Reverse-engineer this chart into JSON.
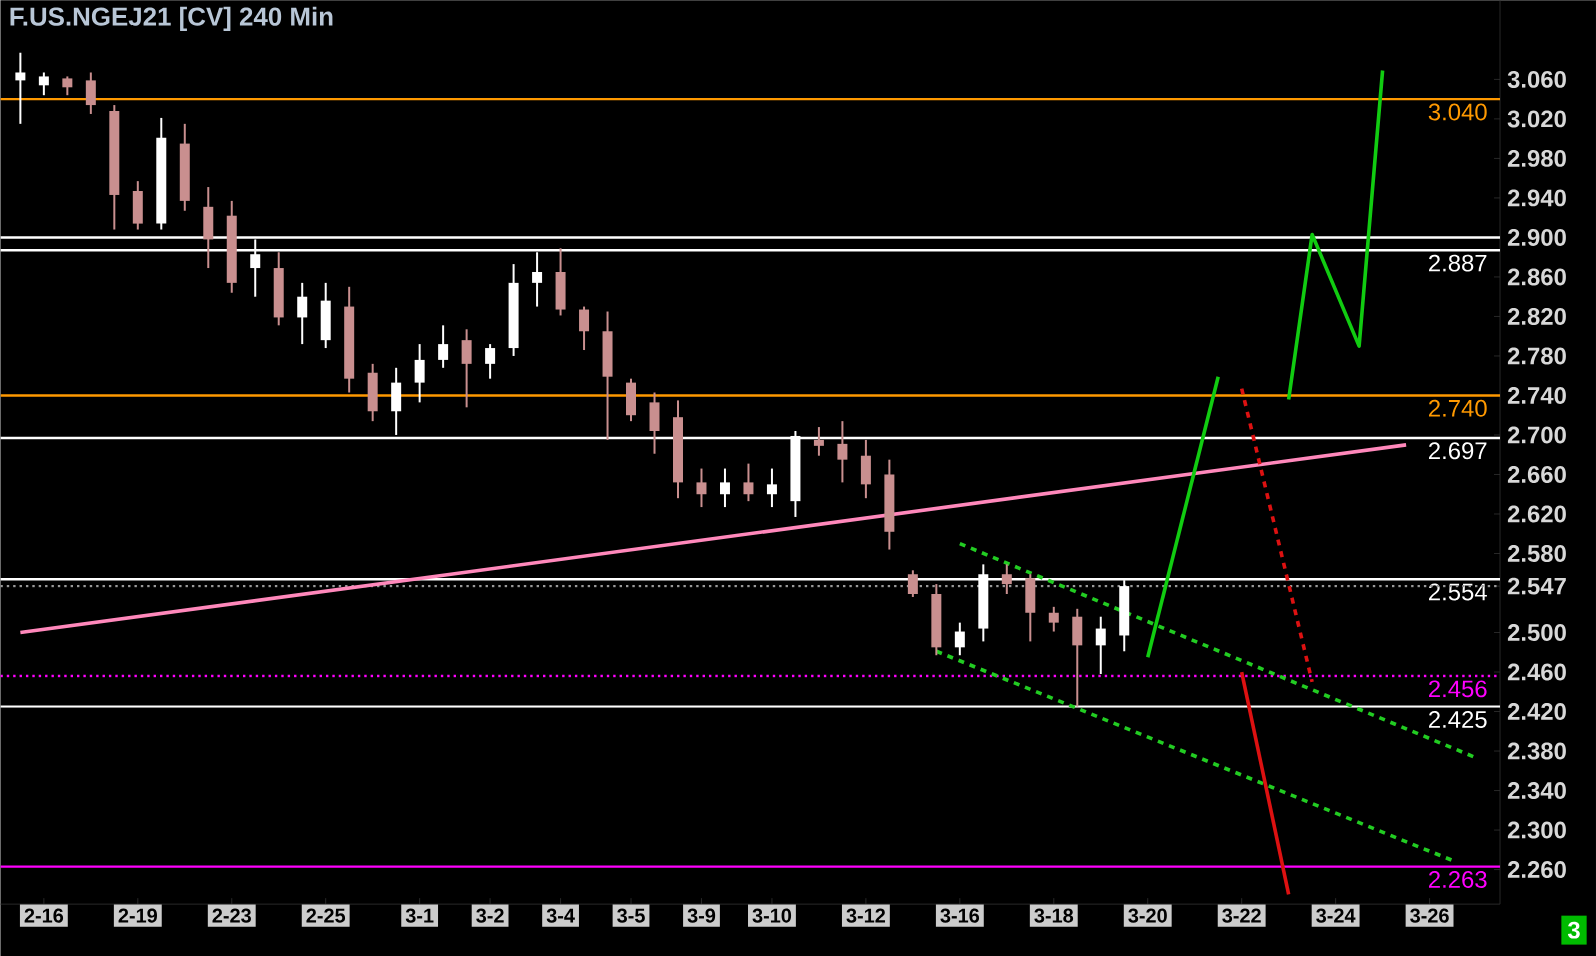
{
  "chart_data": {
    "type": "candlestick",
    "title": "F.US.NGEJ21 [CV] 240 Min",
    "categories": [
      null,
      "2-16",
      null,
      null,
      null,
      "2-19",
      null,
      null,
      null,
      "2-23",
      null,
      null,
      null,
      "2-25",
      null,
      null,
      null,
      "3-1",
      null,
      null,
      "3-2",
      null,
      null,
      "3-4",
      null,
      null,
      "3-5",
      null,
      null,
      "3-9",
      null,
      null,
      "3-10",
      null,
      null,
      null,
      "3-12",
      null,
      null,
      null,
      "3-16",
      null,
      null,
      null,
      "3-18",
      null,
      null,
      null,
      "3-20",
      null,
      null,
      null,
      "3-22",
      null,
      null,
      null,
      "3-24",
      null,
      null,
      null,
      "3-26",
      null,
      null
    ],
    "ylim": [
      2.225,
      3.14
    ],
    "yticks": [
      {
        "value": 3.06,
        "label": "3.060"
      },
      {
        "value": 3.02,
        "label": "3.020"
      },
      {
        "value": 2.98,
        "label": "2.980"
      },
      {
        "value": 2.94,
        "label": "2.940"
      },
      {
        "value": 2.9,
        "label": "2.900"
      },
      {
        "value": 2.86,
        "label": "2.860"
      },
      {
        "value": 2.82,
        "label": "2.820"
      },
      {
        "value": 2.78,
        "label": "2.780"
      },
      {
        "value": 2.74,
        "label": "2.740"
      },
      {
        "value": 2.7,
        "label": "2.700"
      },
      {
        "value": 2.66,
        "label": "2.660"
      },
      {
        "value": 2.62,
        "label": "2.620"
      },
      {
        "value": 2.58,
        "label": "2.580"
      },
      {
        "value": 2.547,
        "label": "2.547"
      },
      {
        "value": 2.5,
        "label": "2.500"
      },
      {
        "value": 2.46,
        "label": "2.460"
      },
      {
        "value": 2.42,
        "label": "2.420"
      },
      {
        "value": 2.38,
        "label": "2.380"
      },
      {
        "value": 2.34,
        "label": "2.340"
      },
      {
        "value": 2.3,
        "label": "2.300"
      },
      {
        "value": 2.26,
        "label": "2.260"
      }
    ],
    "series": [
      {
        "ohlc": [
          [
            3.059,
            3.087,
            3.015,
            3.067
          ],
          [
            3.054,
            3.067,
            3.044,
            3.063
          ],
          [
            3.061,
            3.063,
            3.044,
            3.052
          ],
          [
            3.059,
            3.067,
            3.025,
            3.034
          ],
          [
            3.028,
            3.034,
            2.908,
            2.943
          ],
          [
            2.947,
            2.957,
            2.908,
            2.914
          ],
          [
            2.914,
            3.021,
            2.908,
            3.001
          ],
          [
            2.995,
            3.015,
            2.927,
            2.937
          ],
          [
            2.931,
            2.951,
            2.869,
            2.898
          ],
          [
            2.922,
            2.937,
            2.844,
            2.854
          ],
          [
            2.869,
            2.898,
            2.84,
            2.883
          ],
          [
            2.869,
            2.885,
            2.811,
            2.819
          ],
          [
            2.819,
            2.854,
            2.792,
            2.84
          ],
          [
            2.796,
            2.854,
            2.788,
            2.836
          ],
          [
            2.83,
            2.85,
            2.743,
            2.757
          ],
          [
            2.763,
            2.772,
            2.714,
            2.724
          ],
          [
            2.724,
            2.768,
            2.7,
            2.753
          ],
          [
            2.753,
            2.792,
            2.733,
            2.776
          ],
          [
            2.776,
            2.811,
            2.768,
            2.792
          ],
          [
            2.796,
            2.807,
            2.728,
            2.772
          ],
          [
            2.772,
            2.792,
            2.757,
            2.788
          ],
          [
            2.788,
            2.873,
            2.78,
            2.854
          ],
          [
            2.854,
            2.885,
            2.83,
            2.865
          ],
          [
            2.865,
            2.889,
            2.821,
            2.827
          ],
          [
            2.827,
            2.83,
            2.786,
            2.805
          ],
          [
            2.805,
            2.825,
            2.695,
            2.759
          ],
          [
            2.753,
            2.757,
            2.714,
            2.72
          ],
          [
            2.733,
            2.743,
            2.681,
            2.704
          ],
          [
            2.718,
            2.735,
            2.636,
            2.652
          ],
          [
            2.652,
            2.666,
            2.627,
            2.64
          ],
          [
            2.64,
            2.666,
            2.627,
            2.652
          ],
          [
            2.652,
            2.671,
            2.633,
            2.64
          ],
          [
            2.64,
            2.666,
            2.627,
            2.65
          ],
          [
            2.633,
            2.704,
            2.617,
            2.699
          ],
          [
            2.695,
            2.708,
            2.679,
            2.689
          ],
          [
            2.691,
            2.714,
            2.652,
            2.675
          ],
          [
            2.679,
            2.695,
            2.636,
            2.65
          ],
          [
            2.66,
            2.675,
            2.584,
            2.602
          ],
          [
            2.559,
            2.563,
            2.536,
            2.539
          ],
          [
            2.539,
            2.549,
            2.477,
            2.485
          ],
          [
            2.485,
            2.51,
            2.477,
            2.501
          ],
          [
            2.504,
            2.569,
            2.491,
            2.559
          ],
          [
            2.559,
            2.569,
            2.539,
            2.549
          ],
          [
            2.555,
            2.559,
            2.491,
            2.52
          ],
          [
            2.52,
            2.526,
            2.501,
            2.51
          ],
          [
            2.516,
            2.524,
            2.425,
            2.487
          ],
          [
            2.487,
            2.516,
            2.458,
            2.504
          ],
          [
            2.497,
            2.553,
            2.481,
            2.547
          ],
          null,
          null,
          null,
          null,
          null,
          null,
          null,
          null,
          null,
          null,
          null,
          null,
          null,
          null,
          null
        ],
        "colors": [
          "#ffffff",
          "#ffffff",
          "#c98f8f",
          "#c98f8f",
          "#c98f8f",
          "#c98f8f",
          "#ffffff",
          "#c98f8f",
          "#c98f8f",
          "#c98f8f",
          "#ffffff",
          "#c98f8f",
          "#ffffff",
          "#ffffff",
          "#c98f8f",
          "#c98f8f",
          "#ffffff",
          "#ffffff",
          "#ffffff",
          "#c98f8f",
          "#ffffff",
          "#ffffff",
          "#ffffff",
          "#c98f8f",
          "#c98f8f",
          "#c98f8f",
          "#c98f8f",
          "#c98f8f",
          "#c98f8f",
          "#c98f8f",
          "#ffffff",
          "#c98f8f",
          "#ffffff",
          "#ffffff",
          "#c98f8f",
          "#c98f8f",
          "#c98f8f",
          "#c98f8f",
          "#c98f8f",
          "#c98f8f",
          "#ffffff",
          "#ffffff",
          "#c98f8f",
          "#c98f8f",
          "#c98f8f",
          "#c98f8f",
          "#ffffff",
          "#ffffff",
          null,
          null,
          null,
          null,
          null,
          null,
          null,
          null,
          null,
          null,
          null,
          null,
          null,
          null,
          null
        ]
      },
      {
        "type": "line",
        "color": "#ff88bb",
        "line_style": "solid",
        "values": [
          2.5,
          null,
          null,
          null,
          null,
          null,
          null,
          null,
          null,
          null,
          null,
          null,
          null,
          null,
          null,
          null,
          null,
          null,
          null,
          null,
          null,
          null,
          null,
          null,
          null,
          null,
          null,
          null,
          null,
          null,
          null,
          null,
          null,
          null,
          null,
          null,
          null,
          null,
          null,
          null,
          null,
          null,
          null,
          null,
          null,
          null,
          null,
          null,
          null,
          null,
          null,
          null,
          null,
          null,
          null,
          null,
          null,
          null,
          null,
          2.69,
          null,
          null,
          null
        ]
      },
      {
        "type": "line",
        "color": "#22cc22",
        "line_style": "dashed",
        "values": [
          null,
          null,
          null,
          null,
          null,
          null,
          null,
          null,
          null,
          null,
          null,
          null,
          null,
          null,
          null,
          null,
          null,
          null,
          null,
          null,
          null,
          null,
          null,
          null,
          null,
          null,
          null,
          null,
          null,
          null,
          null,
          null,
          null,
          null,
          null,
          null,
          null,
          null,
          null,
          null,
          2.59,
          null,
          null,
          null,
          null,
          null,
          null,
          null,
          null,
          null,
          null,
          null,
          null,
          null,
          null,
          null,
          null,
          null,
          null,
          null,
          null,
          null,
          2.373
        ]
      },
      {
        "type": "line",
        "color": "#22cc22",
        "line_style": "dashed",
        "values": [
          null,
          null,
          null,
          null,
          null,
          null,
          null,
          null,
          null,
          null,
          null,
          null,
          null,
          null,
          null,
          null,
          null,
          null,
          null,
          null,
          null,
          null,
          null,
          null,
          null,
          null,
          null,
          null,
          null,
          null,
          null,
          null,
          null,
          null,
          null,
          null,
          null,
          null,
          null,
          2.481,
          null,
          null,
          null,
          null,
          null,
          null,
          null,
          null,
          null,
          null,
          null,
          null,
          null,
          null,
          null,
          null,
          null,
          null,
          null,
          null,
          null,
          2.269,
          null
        ]
      },
      {
        "type": "line",
        "color": "#11cc11",
        "line_style": "solid",
        "values": [
          null,
          null,
          null,
          null,
          null,
          null,
          null,
          null,
          null,
          null,
          null,
          null,
          null,
          null,
          null,
          null,
          null,
          null,
          null,
          null,
          null,
          null,
          null,
          null,
          null,
          null,
          null,
          null,
          null,
          null,
          null,
          null,
          null,
          null,
          null,
          null,
          null,
          null,
          null,
          null,
          null,
          null,
          null,
          null,
          null,
          null,
          null,
          null,
          2.475,
          null,
          null,
          2.759,
          null,
          null,
          null,
          null,
          null,
          null,
          null,
          null,
          null,
          null,
          null
        ]
      },
      {
        "type": "line",
        "color": "#11cc11",
        "line_style": "solid",
        "values": [
          null,
          null,
          null,
          null,
          null,
          null,
          null,
          null,
          null,
          null,
          null,
          null,
          null,
          null,
          null,
          null,
          null,
          null,
          null,
          null,
          null,
          null,
          null,
          null,
          null,
          null,
          null,
          null,
          null,
          null,
          null,
          null,
          null,
          null,
          null,
          null,
          null,
          null,
          null,
          null,
          null,
          null,
          null,
          null,
          null,
          null,
          null,
          null,
          null,
          null,
          null,
          null,
          null,
          null,
          2.736,
          2.903,
          null,
          2.79,
          3.069,
          null,
          null,
          null,
          null
        ]
      },
      {
        "type": "line",
        "color": "#dd1111",
        "line_style": "dashed",
        "values": [
          null,
          null,
          null,
          null,
          null,
          null,
          null,
          null,
          null,
          null,
          null,
          null,
          null,
          null,
          null,
          null,
          null,
          null,
          null,
          null,
          null,
          null,
          null,
          null,
          null,
          null,
          null,
          null,
          null,
          null,
          null,
          null,
          null,
          null,
          null,
          null,
          null,
          null,
          null,
          null,
          null,
          null,
          null,
          null,
          null,
          null,
          null,
          null,
          null,
          null,
          null,
          null,
          2.747,
          null,
          null,
          2.45,
          null,
          null,
          null,
          null,
          null,
          null,
          null
        ]
      },
      {
        "type": "line",
        "color": "#dd1111",
        "line_style": "solid",
        "values": [
          null,
          null,
          null,
          null,
          null,
          null,
          null,
          null,
          null,
          null,
          null,
          null,
          null,
          null,
          null,
          null,
          null,
          null,
          null,
          null,
          null,
          null,
          null,
          null,
          null,
          null,
          null,
          null,
          null,
          null,
          null,
          null,
          null,
          null,
          null,
          null,
          null,
          null,
          null,
          null,
          null,
          null,
          null,
          null,
          null,
          null,
          null,
          null,
          null,
          null,
          null,
          null,
          2.46,
          null,
          2.235,
          null,
          null,
          null,
          null,
          null,
          null,
          null,
          null
        ]
      }
    ],
    "ref_lines": [
      {
        "axis": "y",
        "value": 3.04,
        "label": "3.040",
        "color": "#ff9900",
        "line_style": "solid"
      },
      {
        "axis": "y",
        "value": 2.9,
        "color": "#ffffff",
        "line_style": "solid"
      },
      {
        "axis": "y",
        "value": 2.887,
        "label": "2.887",
        "color": "#ffffff",
        "line_style": "solid"
      },
      {
        "axis": "y",
        "value": 2.74,
        "label": "2.740",
        "color": "#ff9900",
        "line_style": "solid"
      },
      {
        "axis": "y",
        "value": 2.697,
        "label": "2.697",
        "color": "#ffffff",
        "line_style": "solid"
      },
      {
        "axis": "y",
        "value": 2.554,
        "label": "2.554",
        "color": "#ffffff",
        "line_style": "solid"
      },
      {
        "axis": "y",
        "value": 2.547,
        "color": "#999999",
        "line_style": "dotted"
      },
      {
        "axis": "y",
        "value": 2.456,
        "label": "2.456",
        "color": "#ff00ff",
        "line_style": "dotted"
      },
      {
        "axis": "y",
        "value": 2.425,
        "label": "2.425",
        "color": "#ffffff",
        "line_style": "solid"
      },
      {
        "axis": "y",
        "value": 2.263,
        "label": "2.263",
        "color": "#ff00ff",
        "line_style": "solid"
      }
    ],
    "annotations": [
      "3"
    ]
  }
}
